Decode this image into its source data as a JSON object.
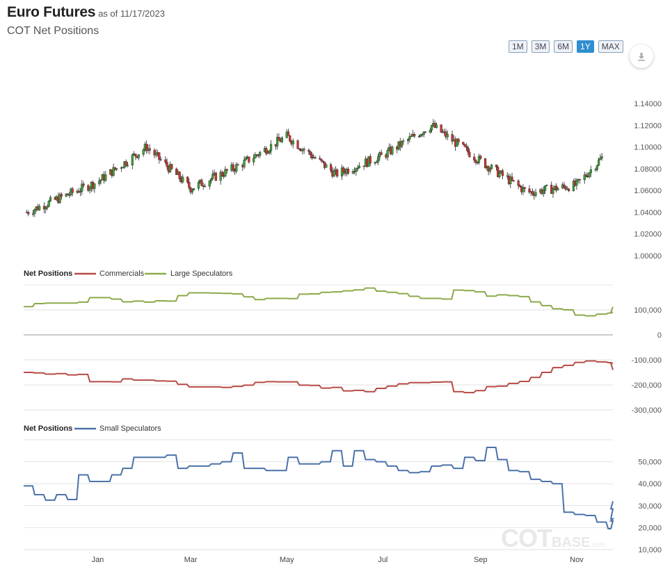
{
  "header": {
    "title": "Euro Futures",
    "as_of": "as of 11/17/2023",
    "subtitle": "COT Net Positions"
  },
  "range_buttons": [
    {
      "label": "1M",
      "active": false
    },
    {
      "label": "3M",
      "active": false
    },
    {
      "label": "6M",
      "active": false
    },
    {
      "label": "1Y",
      "active": true
    },
    {
      "label": "MAX",
      "active": false
    }
  ],
  "download_icon": "download-icon",
  "watermark": {
    "main": "COT",
    "secondary": "BASE",
    "tld": ".com"
  },
  "colors": {
    "up_candle": "#3fa03a",
    "down_candle": "#cc3333",
    "commercials": "#b84a45",
    "large_speculators": "#8aaa4a",
    "small_speculators": "#4a72a8",
    "button_active": "#2f8fd0"
  },
  "chart_data": [
    {
      "type": "candlestick",
      "title": "",
      "y_ticks": [
        "1.14000",
        "1.12000",
        "1.10000",
        "1.08000",
        "1.06000",
        "1.04000",
        "1.02000",
        "1.00000"
      ],
      "ylim": [
        1.0,
        1.14
      ],
      "x": [
        "2022-11-17",
        "2023-01-01",
        "2023-02-01",
        "2023-03-01",
        "2023-04-01",
        "2023-05-01",
        "2023-06-01",
        "2023-07-01",
        "2023-08-01",
        "2023-09-01",
        "2023-10-01",
        "2023-11-01",
        "2023-11-17"
      ],
      "close": [
        1.04,
        1.068,
        1.1,
        1.062,
        1.083,
        1.11,
        1.075,
        1.092,
        1.12,
        1.087,
        1.058,
        1.065,
        1.09
      ]
    },
    {
      "type": "line",
      "legend_title": "Net Positions",
      "legend_placement": "top-left",
      "series": [
        {
          "name": "Commercials",
          "color": "#b84a45",
          "points": [
            [
              "2022-11-15",
              -150000
            ],
            [
              "2022-11-22",
              -152000
            ],
            [
              "2022-11-29",
              -157000
            ],
            [
              "2022-12-06",
              -155000
            ],
            [
              "2022-12-13",
              -160000
            ],
            [
              "2022-12-20",
              -158000
            ],
            [
              "2022-12-27",
              -187000
            ],
            [
              "2023-01-10",
              -188000
            ],
            [
              "2023-01-17",
              -176000
            ],
            [
              "2023-01-24",
              -181000
            ],
            [
              "2023-01-31",
              -181000
            ],
            [
              "2023-02-07",
              -184000
            ],
            [
              "2023-02-14",
              -185000
            ],
            [
              "2023-02-21",
              -198000
            ],
            [
              "2023-02-28",
              -208000
            ],
            [
              "2023-03-14",
              -208000
            ],
            [
              "2023-03-21",
              -210000
            ],
            [
              "2023-03-28",
              -206000
            ],
            [
              "2023-04-04",
              -201000
            ],
            [
              "2023-04-11",
              -190000
            ],
            [
              "2023-04-18",
              -187000
            ],
            [
              "2023-04-25",
              -188000
            ],
            [
              "2023-05-02",
              -188000
            ],
            [
              "2023-05-09",
              -201000
            ],
            [
              "2023-05-16",
              -202000
            ],
            [
              "2023-05-23",
              -213000
            ],
            [
              "2023-05-30",
              -210000
            ],
            [
              "2023-06-06",
              -224000
            ],
            [
              "2023-06-13",
              -222000
            ],
            [
              "2023-06-20",
              -227000
            ],
            [
              "2023-06-27",
              -214000
            ],
            [
              "2023-07-04",
              -205000
            ],
            [
              "2023-07-11",
              -196000
            ],
            [
              "2023-07-18",
              -191000
            ],
            [
              "2023-07-25",
              -191000
            ],
            [
              "2023-08-01",
              -189000
            ],
            [
              "2023-08-08",
              -188000
            ],
            [
              "2023-08-15",
              -227000
            ],
            [
              "2023-08-22",
              -231000
            ],
            [
              "2023-08-29",
              -223000
            ],
            [
              "2023-09-05",
              -207000
            ],
            [
              "2023-09-12",
              -205000
            ],
            [
              "2023-09-19",
              -194000
            ],
            [
              "2023-09-26",
              -186000
            ],
            [
              "2023-10-03",
              -170000
            ],
            [
              "2023-10-10",
              -150000
            ],
            [
              "2023-10-17",
              -131000
            ],
            [
              "2023-10-24",
              -122000
            ],
            [
              "2023-10-31",
              -110000
            ],
            [
              "2023-11-07",
              -104000
            ],
            [
              "2023-11-14",
              -108000
            ],
            [
              "2023-11-21",
              -111000
            ],
            [
              "2023-11-28",
              -113000
            ],
            [
              "2023-12-05",
              -140000
            ]
          ]
        },
        {
          "name": "Large Speculators",
          "color": "#8aaa4a",
          "points": [
            [
              "2022-11-15",
              113000
            ],
            [
              "2022-11-22",
              125000
            ],
            [
              "2022-11-29",
              127000
            ],
            [
              "2022-12-06",
              127000
            ],
            [
              "2022-12-13",
              127000
            ],
            [
              "2022-12-20",
              131000
            ],
            [
              "2022-12-27",
              149000
            ],
            [
              "2023-01-10",
              143000
            ],
            [
              "2023-01-17",
              132000
            ],
            [
              "2023-01-24",
              135000
            ],
            [
              "2023-01-31",
              131000
            ],
            [
              "2023-02-07",
              136000
            ],
            [
              "2023-02-14",
              135000
            ],
            [
              "2023-02-21",
              157000
            ],
            [
              "2023-02-28",
              168000
            ],
            [
              "2023-03-14",
              167000
            ],
            [
              "2023-03-21",
              166000
            ],
            [
              "2023-03-28",
              164000
            ],
            [
              "2023-04-04",
              152000
            ],
            [
              "2023-04-11",
              141000
            ],
            [
              "2023-04-18",
              146000
            ],
            [
              "2023-04-25",
              146000
            ],
            [
              "2023-05-02",
              145000
            ],
            [
              "2023-05-09",
              163000
            ],
            [
              "2023-05-16",
              164000
            ],
            [
              "2023-05-23",
              170000
            ],
            [
              "2023-05-30",
              172000
            ],
            [
              "2023-06-06",
              176000
            ],
            [
              "2023-06-13",
              180000
            ],
            [
              "2023-06-20",
              187000
            ],
            [
              "2023-06-27",
              175000
            ],
            [
              "2023-07-04",
              170000
            ],
            [
              "2023-07-11",
              165000
            ],
            [
              "2023-07-18",
              154000
            ],
            [
              "2023-07-25",
              146000
            ],
            [
              "2023-08-01",
              146000
            ],
            [
              "2023-08-08",
              143000
            ],
            [
              "2023-08-15",
              179000
            ],
            [
              "2023-08-22",
              177000
            ],
            [
              "2023-08-29",
              172000
            ],
            [
              "2023-09-05",
              155000
            ],
            [
              "2023-09-12",
              160000
            ],
            [
              "2023-09-19",
              157000
            ],
            [
              "2023-09-26",
              153000
            ],
            [
              "2023-10-03",
              132000
            ],
            [
              "2023-10-10",
              117000
            ],
            [
              "2023-10-17",
              104000
            ],
            [
              "2023-10-24",
              100000
            ],
            [
              "2023-10-31",
              79000
            ],
            [
              "2023-11-07",
              76000
            ],
            [
              "2023-11-14",
              83000
            ],
            [
              "2023-11-21",
              87000
            ],
            [
              "2023-11-28",
              90000
            ],
            [
              "2023-12-05",
              112000
            ]
          ]
        }
      ],
      "y_ticks": [
        "100,000",
        "0",
        "-100,000",
        "-200,000",
        "-300,000"
      ],
      "ylim": [
        -300000,
        200000
      ],
      "grid": true
    },
    {
      "type": "line",
      "legend_title": "Net Positions",
      "legend_placement": "top-left",
      "series": [
        {
          "name": "Small Speculators",
          "color": "#4a72a8",
          "points": [
            [
              "2022-11-15",
              39000
            ],
            [
              "2022-11-22",
              35000
            ],
            [
              "2022-11-29",
              32500
            ],
            [
              "2022-12-06",
              35000
            ],
            [
              "2022-12-13",
              32800
            ],
            [
              "2022-12-20",
              44000
            ],
            [
              "2022-12-27",
              41000
            ],
            [
              "2023-01-10",
              44000
            ],
            [
              "2023-01-17",
              47000
            ],
            [
              "2023-01-24",
              52000
            ],
            [
              "2023-01-31",
              52000
            ],
            [
              "2023-02-07",
              52000
            ],
            [
              "2023-02-14",
              53000
            ],
            [
              "2023-02-21",
              47000
            ],
            [
              "2023-02-28",
              48000
            ],
            [
              "2023-03-14",
              49000
            ],
            [
              "2023-03-21",
              50000
            ],
            [
              "2023-03-28",
              54000
            ],
            [
              "2023-04-04",
              47000
            ],
            [
              "2023-04-11",
              47000
            ],
            [
              "2023-04-18",
              46000
            ],
            [
              "2023-04-25",
              46000
            ],
            [
              "2023-05-02",
              52000
            ],
            [
              "2023-05-09",
              49000
            ],
            [
              "2023-05-16",
              49000
            ],
            [
              "2023-05-23",
              50000
            ],
            [
              "2023-05-30",
              55000
            ],
            [
              "2023-06-06",
              48000
            ],
            [
              "2023-06-13",
              55000
            ],
            [
              "2023-06-20",
              51000
            ],
            [
              "2023-06-27",
              50000
            ],
            [
              "2023-07-04",
              48000
            ],
            [
              "2023-07-11",
              46000
            ],
            [
              "2023-07-18",
              45000
            ],
            [
              "2023-07-25",
              45500
            ],
            [
              "2023-08-01",
              48000
            ],
            [
              "2023-08-08",
              48500
            ],
            [
              "2023-08-15",
              47000
            ],
            [
              "2023-08-22",
              52000
            ],
            [
              "2023-08-29",
              50500
            ],
            [
              "2023-09-05",
              56500
            ],
            [
              "2023-09-12",
              51000
            ],
            [
              "2023-09-19",
              46000
            ],
            [
              "2023-09-26",
              45500
            ],
            [
              "2023-10-03",
              42000
            ],
            [
              "2023-10-10",
              41000
            ],
            [
              "2023-10-17",
              40000
            ],
            [
              "2023-10-24",
              27000
            ],
            [
              "2023-10-31",
              26000
            ],
            [
              "2023-11-07",
              25500
            ],
            [
              "2023-11-14",
              22500
            ],
            [
              "2023-11-21",
              19500
            ],
            [
              "2023-11-28",
              23000
            ],
            [
              "2023-12-05",
              24000
            ],
            [
              "2023-12-12",
              28500
            ],
            [
              "2023-12-19",
              32000
            ]
          ]
        }
      ],
      "y_ticks": [
        "50,000",
        "40,000",
        "30,000",
        "20,000",
        "10,000"
      ],
      "ylim": [
        10000,
        60000
      ],
      "grid": true
    }
  ],
  "x_axis_labels": [
    "Jan",
    "Mar",
    "May",
    "Jul",
    "Sep",
    "Nov"
  ]
}
